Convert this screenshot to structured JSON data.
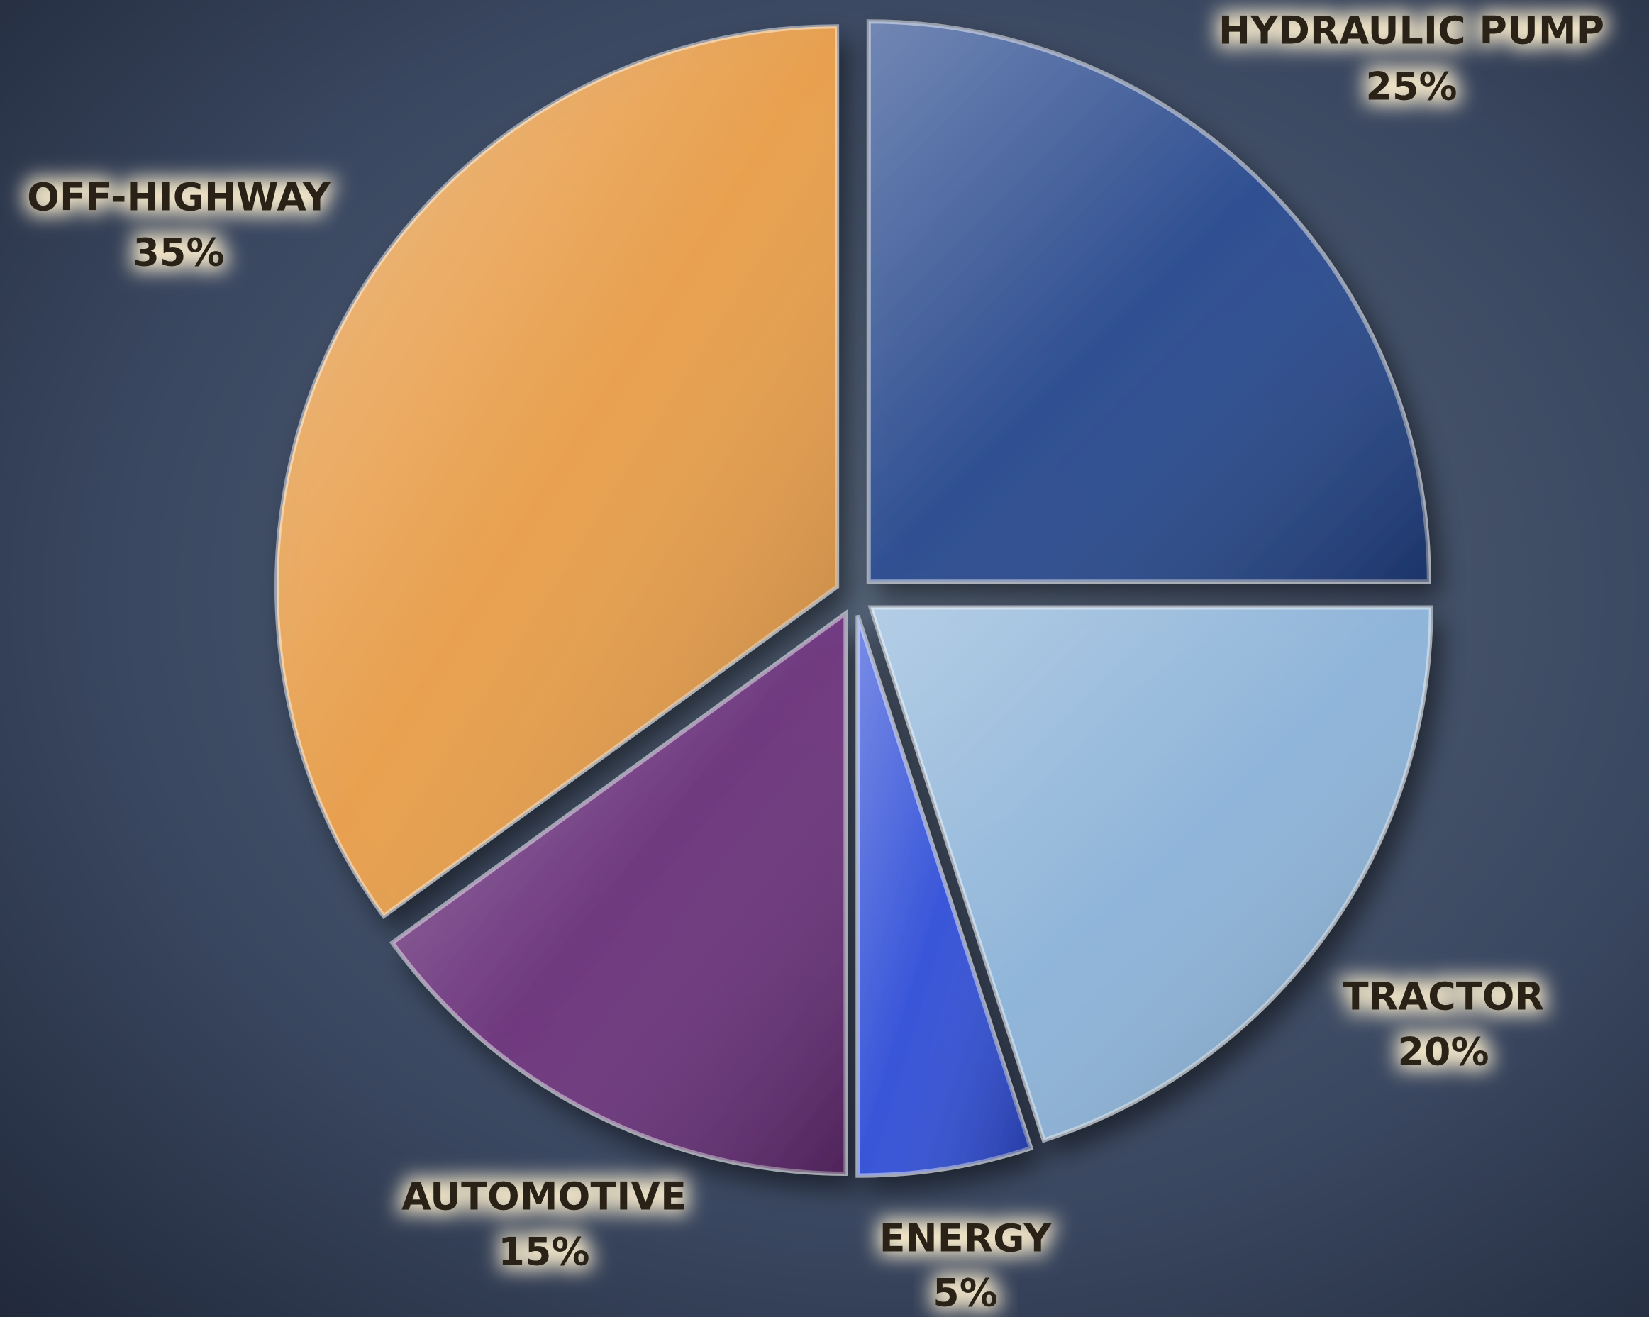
{
  "chart_data": {
    "type": "pie",
    "categories": [
      "HYDRAULIC PUMP",
      "TRACTOR",
      "ENERGY",
      "AUTOMOTIVE",
      "OFF-HIGHWAY"
    ],
    "values": [
      25,
      20,
      5,
      15,
      35
    ],
    "value_labels": [
      "25%",
      "20%",
      "5%",
      "15%",
      "35%"
    ],
    "colors": [
      "#24468f",
      "#8fb9e0",
      "#2f4ee0",
      "#6b2f7c",
      "#f2a246"
    ]
  }
}
